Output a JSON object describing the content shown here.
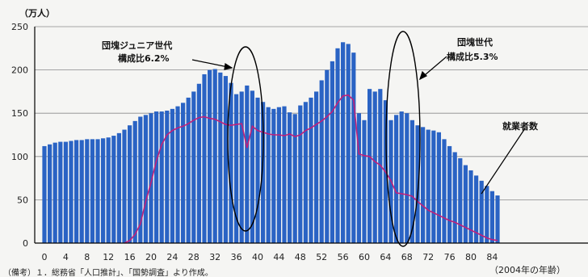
{
  "chart_data": {
    "type": "bar",
    "y_unit": "（万人）",
    "x_unit": "（2004年の年齢）",
    "source_note": "（備考）１．総務省「人口推計」、「国勢調査」より作成。",
    "ylim": [
      0,
      250
    ],
    "y_ticks": [
      0,
      50,
      100,
      150,
      200,
      250
    ],
    "x_ticks": [
      0,
      4,
      8,
      12,
      16,
      20,
      24,
      28,
      32,
      36,
      40,
      44,
      48,
      52,
      56,
      60,
      64,
      68,
      72,
      76,
      80,
      84
    ],
    "ages": [
      0,
      1,
      2,
      3,
      4,
      5,
      6,
      7,
      8,
      9,
      10,
      11,
      12,
      13,
      14,
      15,
      16,
      17,
      18,
      19,
      20,
      21,
      22,
      23,
      24,
      25,
      26,
      27,
      28,
      29,
      30,
      31,
      32,
      33,
      34,
      35,
      36,
      37,
      38,
      39,
      40,
      41,
      42,
      43,
      44,
      45,
      46,
      47,
      48,
      49,
      50,
      51,
      52,
      53,
      54,
      55,
      56,
      57,
      58,
      59,
      60,
      61,
      62,
      63,
      64,
      65,
      66,
      67,
      68,
      69,
      70,
      71,
      72,
      73,
      74,
      75,
      76,
      77,
      78,
      79,
      80,
      81,
      82,
      83,
      84,
      85
    ],
    "series": [
      {
        "type": "bar",
        "color": "#2a63c4",
        "values": [
          112,
          114,
          116,
          117,
          117,
          118,
          119,
          119,
          120,
          120,
          120,
          121,
          122,
          124,
          127,
          131,
          136,
          141,
          146,
          148,
          150,
          152,
          152,
          153,
          155,
          158,
          162,
          168,
          175,
          184,
          195,
          200,
          201,
          197,
          193,
          185,
          172,
          175,
          182,
          176,
          168,
          163,
          157,
          155,
          157,
          158,
          151,
          149,
          159,
          163,
          168,
          175,
          188,
          200,
          210,
          225,
          232,
          230,
          220,
          150,
          142,
          178,
          175,
          178,
          165,
          142,
          148,
          152,
          150,
          142,
          136,
          134,
          131,
          130,
          128,
          120,
          112,
          105,
          98,
          90,
          84,
          78,
          72,
          66,
          60,
          55
        ]
      },
      {
        "name": "就業者数",
        "type": "line",
        "color": "#c0207a",
        "values": [
          null,
          null,
          null,
          null,
          null,
          null,
          null,
          null,
          null,
          null,
          null,
          null,
          null,
          null,
          null,
          0,
          3,
          10,
          22,
          48,
          70,
          95,
          114,
          125,
          130,
          133,
          135,
          138,
          142,
          145,
          146,
          144,
          143,
          140,
          137,
          136,
          137,
          138,
          110,
          135,
          130,
          128,
          126,
          125,
          125,
          124,
          126,
          123,
          125,
          130,
          133,
          137,
          141,
          146,
          152,
          162,
          170,
          171,
          165,
          103,
          101,
          100,
          94,
          90,
          82,
          72,
          58,
          57,
          56,
          54,
          48,
          43,
          38,
          35,
          32,
          29,
          26,
          24,
          21,
          18,
          15,
          12,
          9,
          6,
          4,
          3
        ]
      }
    ],
    "annotations": [
      {
        "label": "団塊ジュニア世代",
        "sublabel": "構成比6.2%"
      },
      {
        "label": "団塊世代",
        "sublabel": "構成比5.3%"
      },
      {
        "label": "就業者数"
      }
    ]
  }
}
